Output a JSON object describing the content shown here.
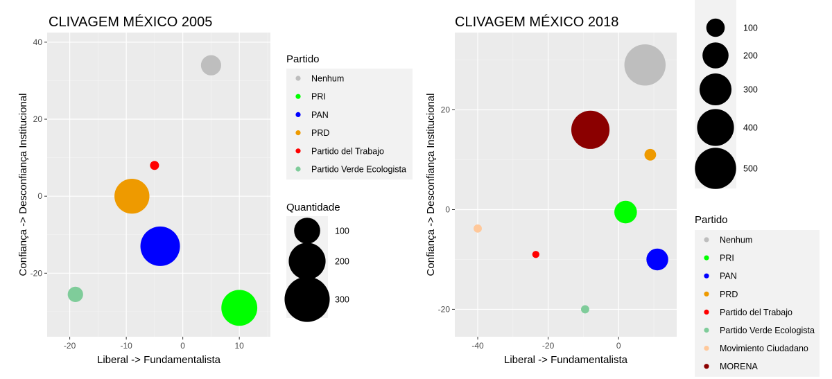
{
  "chart_data": [
    {
      "type": "scatter",
      "title": "CLIVAGEM MÉXICO 2005",
      "xlabel": "Liberal -> Fundamentalista",
      "ylabel": "Confiança -> Desconfiança Institucional",
      "xlim": [
        -24,
        15.5
      ],
      "ylim": [
        -36.5,
        42.5
      ],
      "xticks": [
        -20,
        -10,
        0,
        10
      ],
      "yticks": [
        -20,
        0,
        20,
        40
      ],
      "points": [
        {
          "party": "Nenhum",
          "x": 5,
          "y": 34,
          "size": 60
        },
        {
          "party": "PRI",
          "x": 10,
          "y": -29,
          "size": 190
        },
        {
          "party": "PAN",
          "x": -4,
          "y": -13,
          "size": 230
        },
        {
          "party": "PRD",
          "x": -9,
          "y": 0,
          "size": 180
        },
        {
          "party": "Partido del Trabajo",
          "x": -5,
          "y": 8,
          "size": 12
        },
        {
          "party": "Partido Verde Ecologista",
          "x": -19,
          "y": -25.5,
          "size": 35
        }
      ],
      "legend_party": {
        "title": "Partido",
        "items": [
          {
            "label": "Nenhum",
            "color": "#bebebe"
          },
          {
            "label": "PRI",
            "color": "#00ff00"
          },
          {
            "label": "PAN",
            "color": "#0000ff"
          },
          {
            "label": "PRD",
            "color": "#ee9a00"
          },
          {
            "label": "Partido del Trabajo",
            "color": "#ff0000"
          },
          {
            "label": "Partido Verde Ecologista",
            "color": "#7fcc9a"
          }
        ]
      },
      "legend_size": {
        "title": "Quantidade",
        "items": [
          {
            "label": "100",
            "value": 100
          },
          {
            "label": "200",
            "value": 200
          },
          {
            "label": "300",
            "value": 300
          }
        ]
      }
    },
    {
      "type": "scatter",
      "title": "CLIVAGEM MÉXICO 2018",
      "xlabel": "Liberal -> Fundamentalista",
      "ylabel": "Confiança -> Desconfiança Institucional",
      "xlim": [
        -46.5,
        16.5
      ],
      "ylim": [
        -25.5,
        35.5
      ],
      "xticks": [
        -40,
        -20,
        0
      ],
      "yticks": [
        -20,
        0,
        20
      ],
      "points": [
        {
          "party": "Nenhum",
          "x": 7.5,
          "y": 29,
          "size": 500
        },
        {
          "party": "PRI",
          "x": 2,
          "y": -0.5,
          "size": 150
        },
        {
          "party": "PAN",
          "x": 11,
          "y": -10,
          "size": 140
        },
        {
          "party": "PRD",
          "x": 9,
          "y": 11,
          "size": 40
        },
        {
          "party": "Partido del Trabajo",
          "x": -23.5,
          "y": -9,
          "size": 15
        },
        {
          "party": "Partido Verde Ecologista",
          "x": -9.5,
          "y": -20,
          "size": 20
        },
        {
          "party": "Movimiento Ciudadano",
          "x": -40,
          "y": -3.8,
          "size": 20
        },
        {
          "party": "MORENA",
          "x": -8,
          "y": 16,
          "size": 430
        }
      ],
      "legend_party": {
        "title": "Partido",
        "items": [
          {
            "label": "Nenhum",
            "color": "#bebebe"
          },
          {
            "label": "PRI",
            "color": "#00ff00"
          },
          {
            "label": "PAN",
            "color": "#0000ff"
          },
          {
            "label": "PRD",
            "color": "#ee9a00"
          },
          {
            "label": "Partido del Trabajo",
            "color": "#ff0000"
          },
          {
            "label": "Partido Verde Ecologista",
            "color": "#7fcc9a"
          },
          {
            "label": "Movimiento Ciudadano",
            "color": "#ffc89a"
          },
          {
            "label": "MORENA",
            "color": "#8b0000"
          }
        ]
      },
      "legend_size": {
        "title": "",
        "items": [
          {
            "label": "100",
            "value": 100
          },
          {
            "label": "200",
            "value": 200
          },
          {
            "label": "300",
            "value": 300
          },
          {
            "label": "400",
            "value": 400
          },
          {
            "label": "500",
            "value": 500
          }
        ]
      }
    }
  ]
}
